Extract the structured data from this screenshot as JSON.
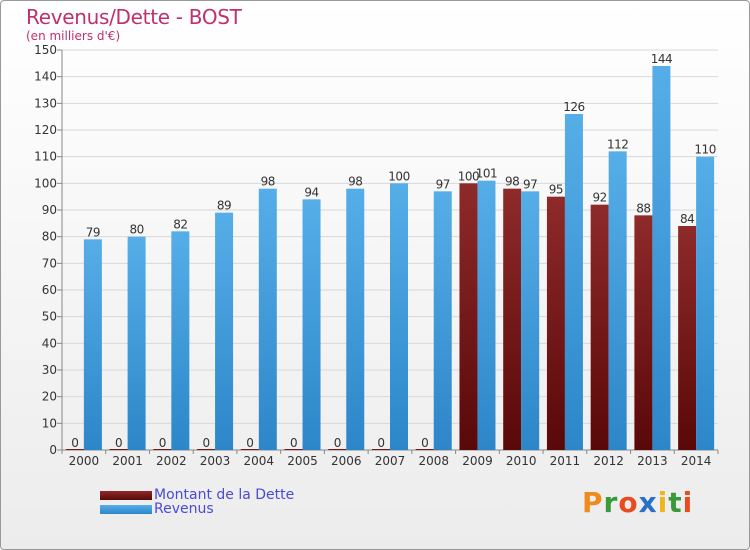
{
  "chart_data": {
    "type": "bar",
    "title": "Revenus/Dette - BOST",
    "subtitle": "(en milliers d'€)",
    "categories": [
      "2000",
      "2001",
      "2002",
      "2003",
      "2004",
      "2005",
      "2006",
      "2007",
      "2008",
      "2009",
      "2010",
      "2011",
      "2012",
      "2013",
      "2014"
    ],
    "series": [
      {
        "name": "Montant de la Dette",
        "color": "#7a1515",
        "values": [
          0,
          0,
          0,
          0,
          0,
          0,
          0,
          0,
          0,
          100,
          98,
          95,
          92,
          88,
          84
        ]
      },
      {
        "name": "Revenus",
        "color": "#3f9ee0",
        "values": [
          79,
          80,
          82,
          89,
          98,
          94,
          98,
          100,
          97,
          101,
          97,
          126,
          112,
          144,
          110
        ]
      }
    ],
    "ylim": [
      0,
      150
    ],
    "yticks": [
      0,
      10,
      20,
      30,
      40,
      50,
      60,
      70,
      80,
      90,
      100,
      110,
      120,
      130,
      140,
      150
    ],
    "grid": true,
    "legend_position": "bottom-left"
  },
  "logo": {
    "letters": [
      "P",
      "r",
      "o",
      "x",
      "i",
      "t",
      "i"
    ],
    "colors": [
      "#f08a1c",
      "#3a9a3a",
      "#e94b1e",
      "#2a6fc9",
      "#f0b51c",
      "#3a9a3a",
      "#e94b1e"
    ]
  }
}
